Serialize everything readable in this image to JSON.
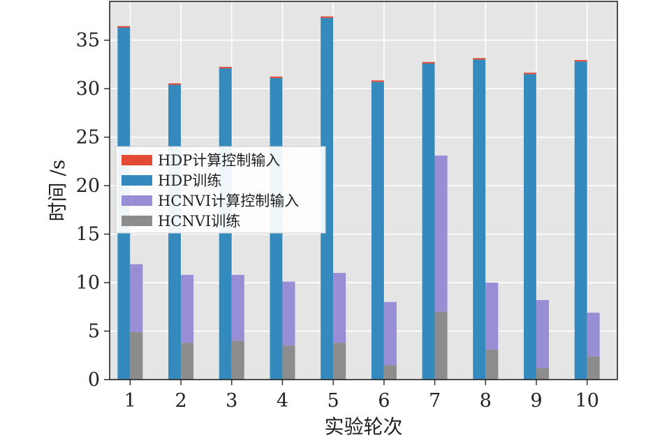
{
  "chart_data": {
    "type": "bar",
    "xlabel": "实验轮次",
    "ylabel": "时间 /s",
    "categories": [
      "1",
      "2",
      "3",
      "4",
      "5",
      "6",
      "7",
      "8",
      "9",
      "10"
    ],
    "ylim": [
      0,
      39
    ],
    "yticks": [
      "0",
      "5",
      "10",
      "15",
      "20",
      "25",
      "30",
      "35"
    ],
    "grid": true,
    "legend_position": "center-left",
    "colors": {
      "background": "#e5e5e5",
      "grid": "#ffffff",
      "hdp_compute": "#e24a33",
      "hdp_train": "#348abd",
      "hcnvi_compute": "#988ed5",
      "hcnvi_train": "#8c8c8c"
    },
    "series": [
      {
        "name": "HDP计算控制输入",
        "group": "HDP",
        "stack": "top",
        "values": [
          0.15,
          0.15,
          0.15,
          0.15,
          0.15,
          0.15,
          0.15,
          0.15,
          0.15,
          0.15
        ]
      },
      {
        "name": "HDP训练",
        "group": "HDP",
        "stack": "bottom",
        "values": [
          36.3,
          30.4,
          32.1,
          31.1,
          37.3,
          30.7,
          32.6,
          33.0,
          31.5,
          32.8
        ]
      },
      {
        "name": "HCNVI计算控制输入",
        "group": "HCNVI",
        "stack": "top",
        "values": [
          7.0,
          7.0,
          6.8,
          6.6,
          7.2,
          6.5,
          16.1,
          6.9,
          7.0,
          4.5
        ]
      },
      {
        "name": "HCNVI训练",
        "group": "HCNVI",
        "stack": "bottom",
        "values": [
          4.9,
          3.8,
          4.0,
          3.5,
          3.8,
          1.5,
          7.0,
          3.1,
          1.2,
          2.4
        ]
      }
    ]
  }
}
